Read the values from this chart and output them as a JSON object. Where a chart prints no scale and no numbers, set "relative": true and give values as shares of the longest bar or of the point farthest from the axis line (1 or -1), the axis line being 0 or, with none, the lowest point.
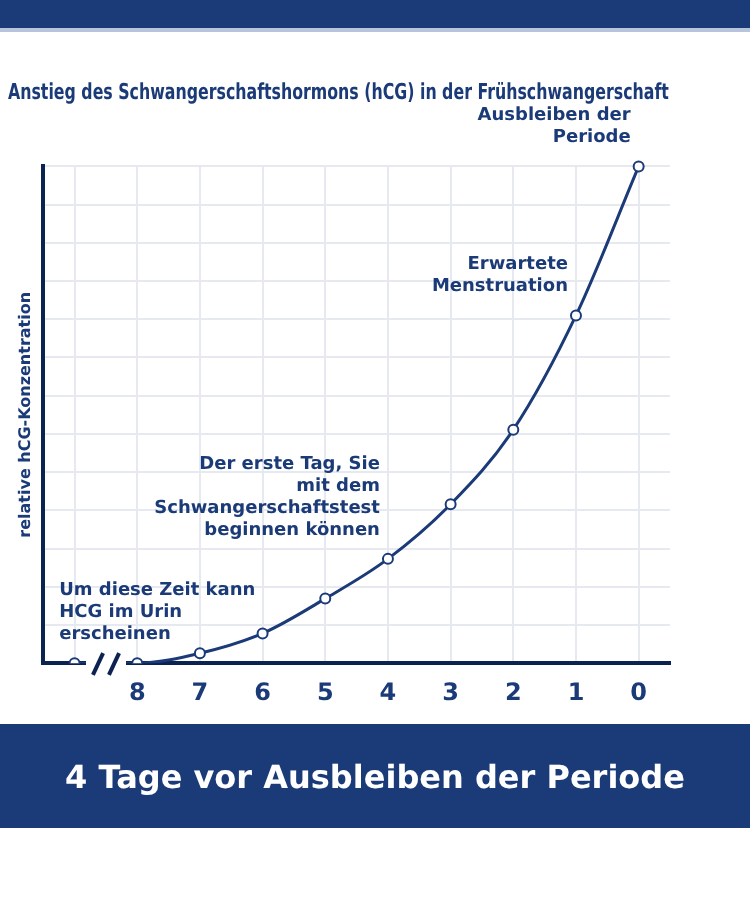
{
  "chart_data": {
    "type": "line",
    "relative": true,
    "title": "Anstieg des Schwangerschaftshormons (hCG) in der Frühschwangerschaft",
    "ylabel": "relative hCG-Konzentration",
    "categories": [
      null,
      "8",
      "7",
      "6",
      "5",
      "4",
      "3",
      "2",
      "1",
      "0"
    ],
    "series": [
      {
        "color": "#1b3a78",
        "values": [
          0,
          0,
          0.02,
          0.06,
          0.13,
          0.21,
          0.32,
          0.47,
          0.7,
          1
        ]
      }
    ],
    "marker": "circle",
    "grid": true,
    "legend": false,
    "annotations": [
      {
        "text": "Ausbleiben der Periode",
        "x": "0",
        "y": 1
      },
      {
        "text": "Erwartete Menstruation",
        "x": "1",
        "y": 0.7
      },
      {
        "text": "Der erste Tag, Sie mit dem Schwangerschaftstest beginnen können",
        "x": "4",
        "y": 0.21
      },
      {
        "text": "Um diese Zeit kann HCG im Urin erscheinen",
        "x": "8",
        "y": 0
      },
      "4 Tage vor Ausbleiben der Periode"
    ]
  }
}
